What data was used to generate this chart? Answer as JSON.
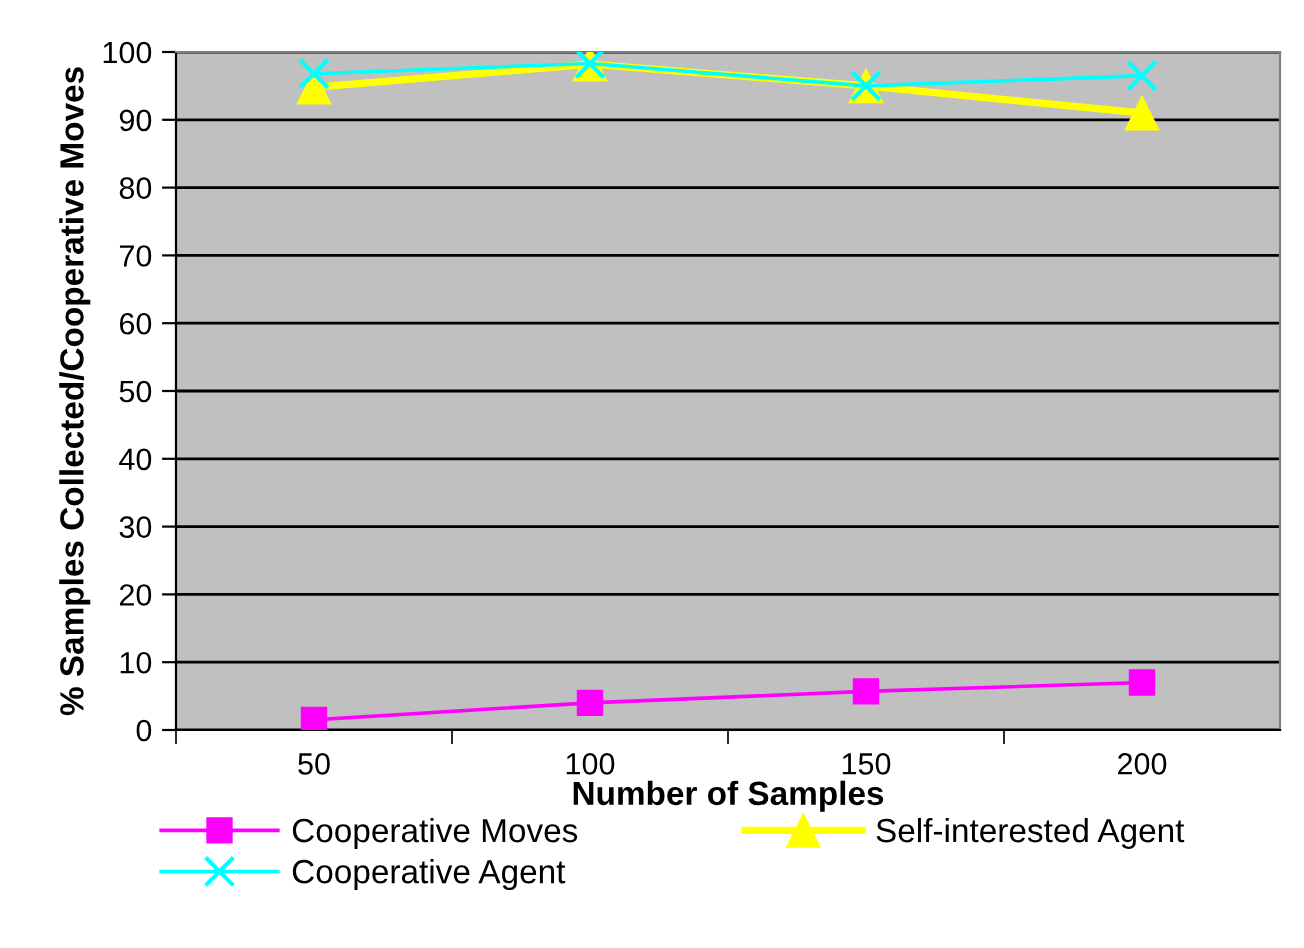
{
  "chart_data": {
    "type": "line",
    "xlabel": "Number of Samples",
    "ylabel": "% Samples Collected/Cooperative Moves",
    "categories": [
      "50",
      "100",
      "150",
      "200"
    ],
    "series": [
      {
        "name": "Cooperative Moves",
        "color": "#ff00ff",
        "marker": "square",
        "values": [
          1.5,
          4,
          5.7,
          7
        ]
      },
      {
        "name": "Self-interested Agent",
        "color": "#ffff00",
        "marker": "triangle",
        "values": [
          94.8,
          98.2,
          95,
          91
        ]
      },
      {
        "name": "Cooperative Agent",
        "color": "#00ffff",
        "marker": "cross",
        "values": [
          96.8,
          98.3,
          95,
          96.5
        ]
      }
    ],
    "ylim": [
      0,
      100
    ],
    "yticks": [
      0,
      10,
      20,
      30,
      40,
      50,
      60,
      70,
      80,
      90,
      100
    ],
    "grid": "y",
    "legend": "bottom"
  }
}
